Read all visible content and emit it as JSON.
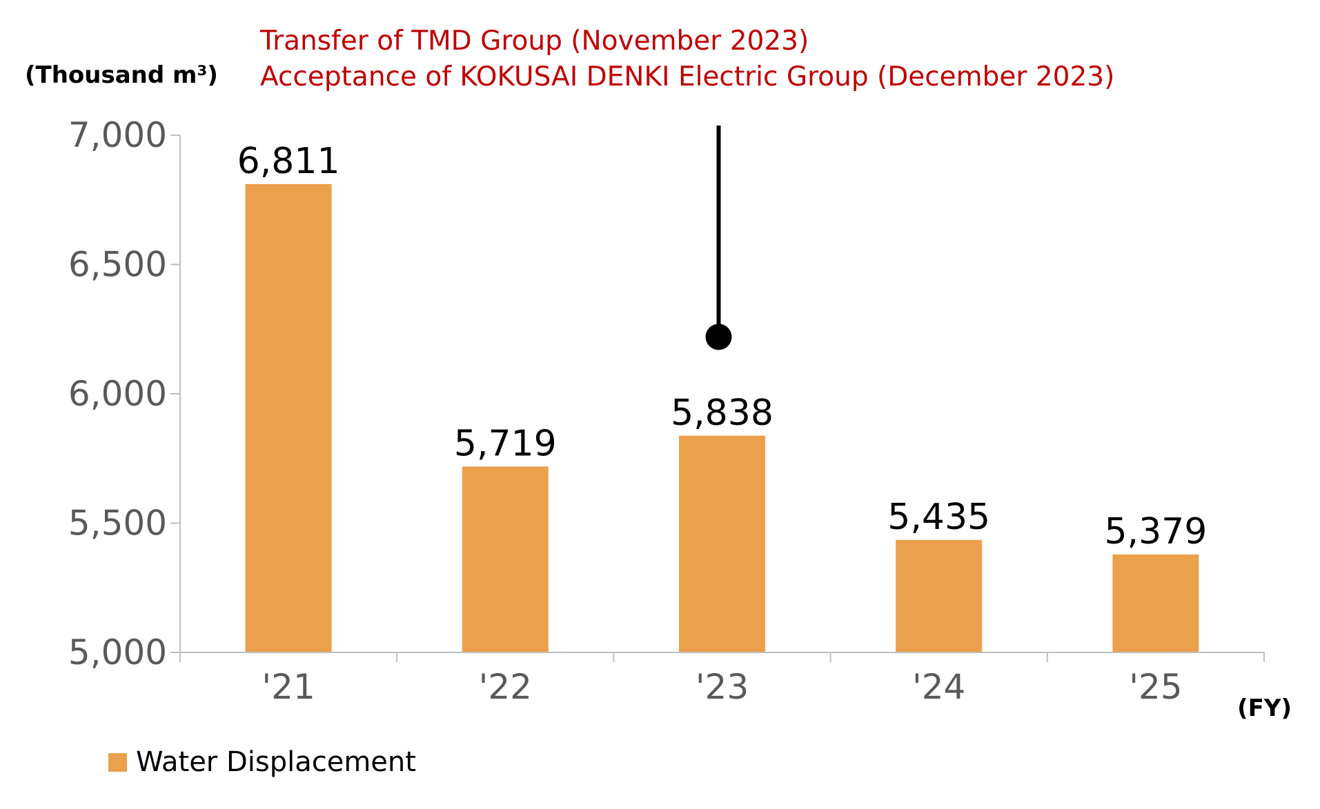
{
  "chart_data": {
    "type": "bar",
    "categories": [
      "'21",
      "'22",
      "'23",
      "'24",
      "'25"
    ],
    "series": [
      {
        "name": "Water Displacement",
        "values": [
          6811,
          5719,
          5838,
          5435,
          5379
        ],
        "color": "#eba04c"
      }
    ],
    "data_labels": [
      "6,811",
      "5,719",
      "5,838",
      "5,435",
      "5,379"
    ],
    "ylabel": "(Thousand m³)",
    "xlabel": "(FY)",
    "ylim": [
      5000,
      7000
    ],
    "y_ticks": [
      {
        "value": 5000,
        "label": "5,000"
      },
      {
        "value": 5500,
        "label": "5,500"
      },
      {
        "value": 6000,
        "label": "6,000"
      },
      {
        "value": 6500,
        "label": "6,500"
      },
      {
        "value": 7000,
        "label": "7,000"
      }
    ],
    "legend_position": "bottom-left",
    "grid": false,
    "annotation": {
      "lines": [
        "Transfer of TMD Group (November 2023)",
        "Acceptance of KOKUSAI DENKI Electric Group (December 2023)"
      ],
      "category": "'23",
      "marker_value": 6220,
      "color": "#c00000"
    }
  }
}
